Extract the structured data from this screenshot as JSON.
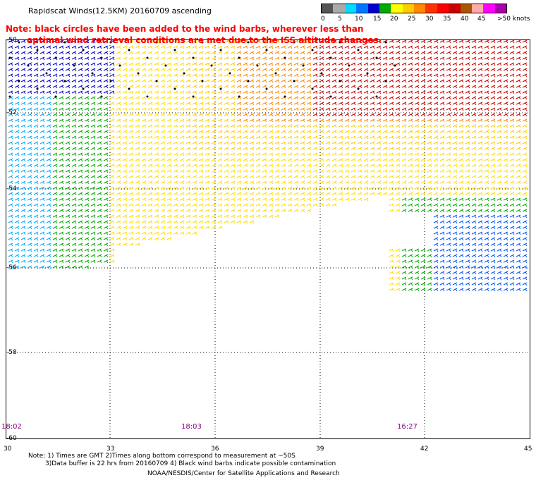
{
  "header": {
    "title": "Rapidscat Winds(12.5KM) 20160709 ascending"
  },
  "notice": {
    "line1": "Note: black circles have been added to the wind barbs, wherever less than",
    "line2": "optimal wind retrieval conditions are met due to the ISS altitude changes."
  },
  "legend": {
    "colors": [
      "#555555",
      "#aaaaaa",
      "#00ddff",
      "#0077ff",
      "#0000cc",
      "#00aa00",
      "#ffff00",
      "#ffcc00",
      "#ff8800",
      "#ff3300",
      "#ff0000",
      "#cc0000",
      "#aa5500",
      "#ffaaaa",
      "#ff00ff",
      "#aa00aa"
    ],
    "labels": [
      "0",
      "5",
      "10",
      "15",
      "20",
      "25",
      "30",
      "35",
      "40",
      "45",
      ">50 knots"
    ]
  },
  "axes": {
    "lat_labels": [
      "-50",
      "-52",
      "-54",
      "-56",
      "-58",
      "-60"
    ],
    "lon_labels": [
      "30",
      "33",
      "36",
      "39",
      "42",
      "45"
    ]
  },
  "times": [
    "18:02",
    "18:03",
    "16:27"
  ],
  "footer": {
    "line1": "Note: 1) Times are GMT 2)Times along bottom correspond to measurement at ~50S",
    "line2": "3)Data buffer is 22 hrs from 20160709 4) Black wind barbs indicate possible contamination",
    "line3": "NOAA/NESDIS/Center for Satellite Applications and Research"
  }
}
